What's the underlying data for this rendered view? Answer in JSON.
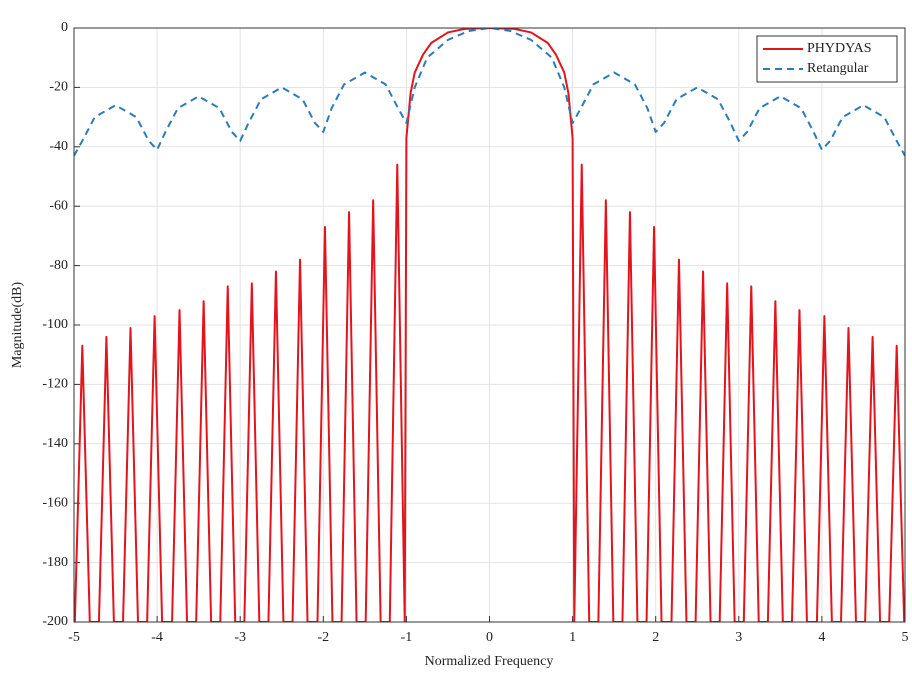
{
  "chart_data": {
    "type": "line",
    "xlabel": "Normalized Frequency",
    "ylabel": "Magnitude(dB)",
    "xlim": [
      -5,
      5
    ],
    "ylim": [
      -200,
      0
    ],
    "xticks": [
      -5,
      -4,
      -3,
      -2,
      -1,
      0,
      1,
      2,
      3,
      4,
      5
    ],
    "yticks": [
      0,
      -20,
      -40,
      -60,
      -80,
      -100,
      -120,
      -140,
      -160,
      -180,
      -200
    ],
    "grid": true,
    "legend": "upper right",
    "series": [
      {
        "name": "PHYDYAS",
        "color": "#e3141c",
        "style": "solid",
        "x": [
          -4.99,
          -4.9,
          -4.81,
          -4.7,
          -4.61,
          -4.52,
          -4.41,
          -4.32,
          -4.23,
          -4.12,
          -4.03,
          -3.94,
          -3.82,
          -3.73,
          -3.64,
          -3.53,
          -3.44,
          -3.35,
          -3.24,
          -3.15,
          -3.06,
          -2.95,
          -2.86,
          -2.77,
          -2.66,
          -2.57,
          -2.48,
          -2.37,
          -2.28,
          -2.19,
          -2.07,
          -1.98,
          -1.89,
          -1.78,
          -1.69,
          -1.6,
          -1.49,
          -1.4,
          -1.31,
          -1.2,
          -1.11,
          -1.02,
          -1.0,
          -0.95,
          -0.9,
          -0.8,
          -0.7,
          -0.5,
          -0.3,
          0,
          0.3,
          0.5,
          0.7,
          0.8,
          0.9,
          0.95,
          1.0,
          1.02,
          1.11,
          1.2,
          1.31,
          1.4,
          1.49,
          1.6,
          1.69,
          1.78,
          1.89,
          1.98,
          2.07,
          2.19,
          2.28,
          2.37,
          2.48,
          2.57,
          2.66,
          2.77,
          2.86,
          2.95,
          3.06,
          3.15,
          3.24,
          3.35,
          3.44,
          3.53,
          3.64,
          3.73,
          3.82,
          3.94,
          4.03,
          4.12,
          4.23,
          4.32,
          4.41,
          4.52,
          4.61,
          4.7,
          4.81,
          4.9,
          4.99
        ],
        "values": [
          -200,
          -107,
          -200,
          -200,
          -104,
          -200,
          -200,
          -101,
          -200,
          -200,
          -97,
          -200,
          -200,
          -95,
          -200,
          -200,
          -92,
          -200,
          -200,
          -87,
          -200,
          -200,
          -86,
          -200,
          -200,
          -82,
          -200,
          -200,
          -78,
          -200,
          -200,
          -67,
          -200,
          -200,
          -62,
          -200,
          -200,
          -58,
          -200,
          -200,
          -46,
          -200,
          -37,
          -22,
          -15,
          -9,
          -5,
          -1.5,
          -0.3,
          0,
          -0.3,
          -1.5,
          -5,
          -9,
          -15,
          -22,
          -37,
          -200,
          -46,
          -200,
          -200,
          -58,
          -200,
          -200,
          -62,
          -200,
          -200,
          -67,
          -200,
          -200,
          -78,
          -200,
          -200,
          -82,
          -200,
          -200,
          -86,
          -200,
          -200,
          -87,
          -200,
          -200,
          -92,
          -200,
          -200,
          -95,
          -200,
          -200,
          -97,
          -200,
          -200,
          -101,
          -200,
          -200,
          -104,
          -200,
          -200,
          -107,
          -200
        ]
      },
      {
        "name": "Retangular",
        "color": "#2b7bba",
        "style": "dashed",
        "x": [
          -5,
          -4.9,
          -4.75,
          -4.5,
          -4.25,
          -4.1,
          -4,
          -3.9,
          -3.75,
          -3.5,
          -3.25,
          -3.1,
          -3,
          -2.9,
          -2.75,
          -2.5,
          -2.25,
          -2.1,
          -2,
          -1.9,
          -1.75,
          -1.5,
          -1.25,
          -1.1,
          -1,
          -0.9,
          -0.75,
          -0.5,
          -0.25,
          0,
          0.25,
          0.5,
          0.75,
          0.9,
          1,
          1.1,
          1.25,
          1.5,
          1.75,
          1.9,
          2,
          2.1,
          2.25,
          2.5,
          2.75,
          2.9,
          3,
          3.1,
          3.25,
          3.5,
          3.75,
          3.9,
          4,
          4.1,
          4.25,
          4.5,
          4.75,
          4.9,
          5
        ],
        "values": [
          -43,
          -38,
          -30,
          -26,
          -30,
          -38,
          -41,
          -35,
          -27,
          -23,
          -27,
          -35,
          -38,
          -32,
          -24,
          -20,
          -24,
          -32,
          -35,
          -27,
          -19,
          -15,
          -19,
          -27,
          -32,
          -20,
          -10,
          -4,
          -1,
          0,
          -1,
          -4,
          -10,
          -20,
          -32,
          -27,
          -19,
          -15,
          -19,
          -27,
          -35,
          -32,
          -24,
          -20,
          -24,
          -32,
          -38,
          -35,
          -27,
          -23,
          -27,
          -35,
          -41,
          -38,
          -30,
          -26,
          -30,
          -38,
          -43
        ]
      }
    ]
  }
}
